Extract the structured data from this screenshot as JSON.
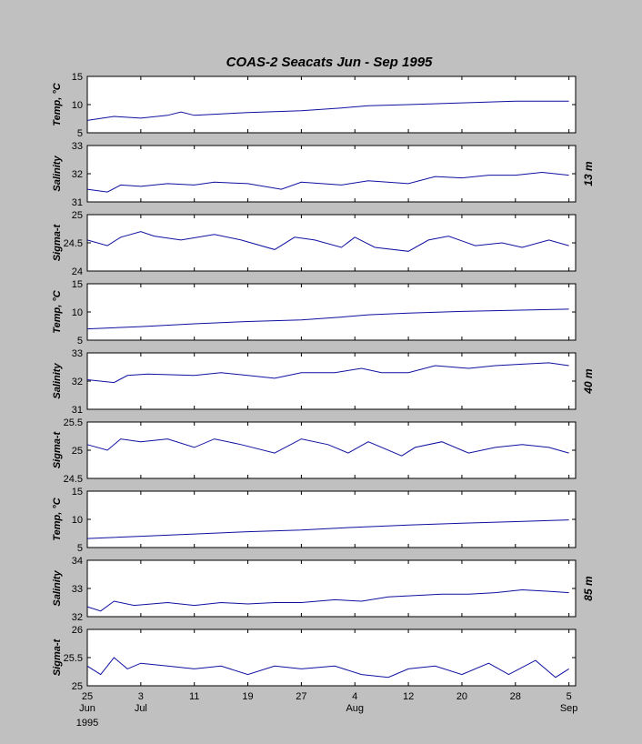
{
  "chart_data": {
    "type": "line",
    "title": "COAS-2  Seacats  Jun - Sep 1995",
    "x_start": "1995-06-25",
    "x_end": "1995-09-06",
    "x_ticks": [
      {
        "date": "1995-06-25",
        "day": "25",
        "month": "Jun"
      },
      {
        "date": "1995-07-03",
        "day": "3",
        "month": "Jul"
      },
      {
        "date": "1995-07-11",
        "day": "11",
        "month": ""
      },
      {
        "date": "1995-07-19",
        "day": "19",
        "month": ""
      },
      {
        "date": "1995-07-27",
        "day": "27",
        "month": ""
      },
      {
        "date": "1995-08-04",
        "day": "4",
        "month": "Aug"
      },
      {
        "date": "1995-08-12",
        "day": "12",
        "month": ""
      },
      {
        "date": "1995-08-20",
        "day": "20",
        "month": ""
      },
      {
        "date": "1995-08-28",
        "day": "28",
        "month": ""
      },
      {
        "date": "1995-09-05",
        "day": "5",
        "month": "Sep"
      }
    ],
    "year_label": "1995",
    "groups": [
      {
        "depth": "13 m",
        "panels": [
          {
            "ylabel": "Temp, °C",
            "ylim": [
              5,
              15
            ],
            "yticks": [
              "15",
              "10",
              "5"
            ],
            "x": [
              "1995-06-25",
              "1995-06-29",
              "1995-07-03",
              "1995-07-07",
              "1995-07-09",
              "1995-07-11",
              "1995-07-19",
              "1995-07-27",
              "1995-08-02",
              "1995-08-06",
              "1995-08-12",
              "1995-08-20",
              "1995-08-28",
              "1995-09-05"
            ],
            "values": [
              7.2,
              7.9,
              7.6,
              8.1,
              8.7,
              8.1,
              8.6,
              8.9,
              9.4,
              9.8,
              10.0,
              10.3,
              10.6,
              10.6
            ]
          },
          {
            "ylabel": "Salinity",
            "ylim": [
              31,
              33
            ],
            "yticks": [
              "33",
              "32",
              "31"
            ],
            "x": [
              "1995-06-25",
              "1995-06-28",
              "1995-06-30",
              "1995-07-03",
              "1995-07-07",
              "1995-07-11",
              "1995-07-14",
              "1995-07-19",
              "1995-07-24",
              "1995-07-27",
              "1995-08-02",
              "1995-08-06",
              "1995-08-12",
              "1995-08-16",
              "1995-08-20",
              "1995-08-24",
              "1995-08-28",
              "1995-09-01",
              "1995-09-05"
            ],
            "values": [
              31.45,
              31.35,
              31.6,
              31.55,
              31.65,
              31.6,
              31.7,
              31.65,
              31.45,
              31.7,
              31.6,
              31.75,
              31.65,
              31.9,
              31.85,
              31.95,
              31.95,
              32.05,
              31.95
            ]
          },
          {
            "ylabel": "Sigma-t",
            "ylim": [
              24,
              25
            ],
            "yticks": [
              "25",
              "24.5",
              "24"
            ],
            "x": [
              "1995-06-25",
              "1995-06-28",
              "1995-06-30",
              "1995-07-03",
              "1995-07-05",
              "1995-07-09",
              "1995-07-14",
              "1995-07-18",
              "1995-07-23",
              "1995-07-26",
              "1995-07-29",
              "1995-08-02",
              "1995-08-04",
              "1995-08-07",
              "1995-08-12",
              "1995-08-15",
              "1995-08-18",
              "1995-08-22",
              "1995-08-26",
              "1995-08-29",
              "1995-09-02",
              "1995-09-05"
            ],
            "values": [
              24.55,
              24.45,
              24.6,
              24.7,
              24.62,
              24.55,
              24.65,
              24.55,
              24.38,
              24.6,
              24.55,
              24.42,
              24.6,
              24.42,
              24.35,
              24.55,
              24.62,
              24.45,
              24.5,
              24.42,
              24.55,
              24.45
            ]
          }
        ]
      },
      {
        "depth": "40 m",
        "panels": [
          {
            "ylabel": "Temp, °C",
            "ylim": [
              5,
              15
            ],
            "yticks": [
              "15",
              "10",
              "5"
            ],
            "x": [
              "1995-06-25",
              "1995-07-03",
              "1995-07-11",
              "1995-07-19",
              "1995-07-27",
              "1995-08-02",
              "1995-08-06",
              "1995-08-12",
              "1995-08-20",
              "1995-08-28",
              "1995-09-05"
            ],
            "values": [
              7.0,
              7.4,
              7.9,
              8.3,
              8.6,
              9.1,
              9.5,
              9.8,
              10.1,
              10.3,
              10.5
            ]
          },
          {
            "ylabel": "Salinity",
            "ylim": [
              31,
              33
            ],
            "yticks": [
              "33",
              "32",
              "31"
            ],
            "x": [
              "1995-06-25",
              "1995-06-29",
              "1995-07-01",
              "1995-07-04",
              "1995-07-11",
              "1995-07-15",
              "1995-07-19",
              "1995-07-23",
              "1995-07-27",
              "1995-08-01",
              "1995-08-05",
              "1995-08-08",
              "1995-08-12",
              "1995-08-16",
              "1995-08-21",
              "1995-08-25",
              "1995-08-29",
              "1995-09-02",
              "1995-09-05"
            ],
            "values": [
              32.05,
              31.95,
              32.2,
              32.25,
              32.2,
              32.3,
              32.2,
              32.1,
              32.3,
              32.3,
              32.45,
              32.3,
              32.3,
              32.55,
              32.45,
              32.55,
              32.6,
              32.65,
              32.55
            ]
          },
          {
            "ylabel": "Sigma-t",
            "ylim": [
              24.5,
              25.5
            ],
            "yticks": [
              "25.5",
              "25",
              "24.5"
            ],
            "x": [
              "1995-06-25",
              "1995-06-28",
              "1995-06-30",
              "1995-07-03",
              "1995-07-07",
              "1995-07-11",
              "1995-07-14",
              "1995-07-18",
              "1995-07-23",
              "1995-07-27",
              "1995-07-31",
              "1995-08-03",
              "1995-08-06",
              "1995-08-11",
              "1995-08-13",
              "1995-08-17",
              "1995-08-21",
              "1995-08-25",
              "1995-08-29",
              "1995-09-02",
              "1995-09-05"
            ],
            "values": [
              25.1,
              25.0,
              25.2,
              25.15,
              25.2,
              25.05,
              25.2,
              25.1,
              24.95,
              25.2,
              25.1,
              24.95,
              25.15,
              24.9,
              25.05,
              25.15,
              24.95,
              25.05,
              25.1,
              25.05,
              24.95
            ]
          }
        ]
      },
      {
        "depth": "85 m",
        "panels": [
          {
            "ylabel": "Temp, °C",
            "ylim": [
              5,
              15
            ],
            "yticks": [
              "15",
              "10",
              "5"
            ],
            "x": [
              "1995-06-25",
              "1995-07-03",
              "1995-07-11",
              "1995-07-19",
              "1995-07-27",
              "1995-08-04",
              "1995-08-12",
              "1995-08-20",
              "1995-08-28",
              "1995-09-05"
            ],
            "values": [
              6.6,
              7.0,
              7.4,
              7.8,
              8.1,
              8.6,
              9.0,
              9.3,
              9.6,
              9.9
            ]
          },
          {
            "ylabel": "Salinity",
            "ylim": [
              32,
              34
            ],
            "yticks": [
              "34",
              "33",
              "32"
            ],
            "x": [
              "1995-06-25",
              "1995-06-27",
              "1995-06-29",
              "1995-07-02",
              "1995-07-07",
              "1995-07-11",
              "1995-07-15",
              "1995-07-19",
              "1995-07-23",
              "1995-07-27",
              "1995-08-01",
              "1995-08-05",
              "1995-08-09",
              "1995-08-13",
              "1995-08-17",
              "1995-08-21",
              "1995-08-25",
              "1995-08-29",
              "1995-09-02",
              "1995-09-05"
            ],
            "values": [
              32.35,
              32.2,
              32.55,
              32.4,
              32.5,
              32.4,
              32.5,
              32.45,
              32.5,
              32.5,
              32.6,
              32.55,
              32.7,
              32.75,
              32.8,
              32.8,
              32.85,
              32.95,
              32.9,
              32.85
            ]
          },
          {
            "ylabel": "Sigma-t",
            "ylim": [
              25,
              26
            ],
            "yticks": [
              "26",
              "25.5",
              "25"
            ],
            "x": [
              "1995-06-25",
              "1995-06-27",
              "1995-06-29",
              "1995-07-01",
              "1995-07-03",
              "1995-07-07",
              "1995-07-11",
              "1995-07-15",
              "1995-07-19",
              "1995-07-23",
              "1995-07-27",
              "1995-08-01",
              "1995-08-05",
              "1995-08-09",
              "1995-08-12",
              "1995-08-16",
              "1995-08-20",
              "1995-08-24",
              "1995-08-27",
              "1995-08-31",
              "1995-09-03",
              "1995-09-05"
            ],
            "values": [
              25.35,
              25.2,
              25.5,
              25.3,
              25.4,
              25.35,
              25.3,
              25.35,
              25.2,
              25.35,
              25.3,
              25.35,
              25.2,
              25.15,
              25.3,
              25.35,
              25.2,
              25.4,
              25.2,
              25.45,
              25.15,
              25.3
            ]
          }
        ]
      }
    ]
  }
}
